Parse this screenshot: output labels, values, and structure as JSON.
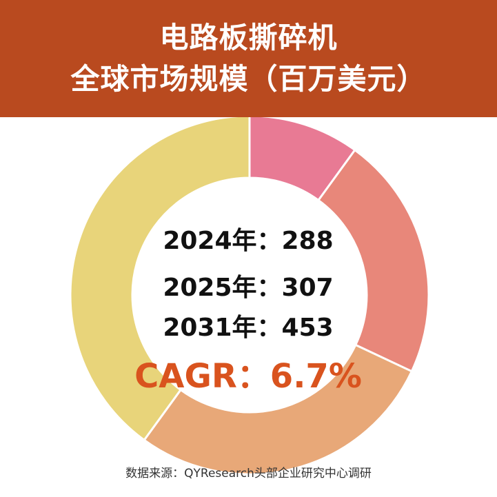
{
  "header": {
    "title_line1": "电路板撕碎机",
    "title_line2": "全球市场规模（百万美元）"
  },
  "center": {
    "line_2024": "2024年：288",
    "line_2025": "2025年：307",
    "line_2031": "2031年：453",
    "cagr": "CAGR：6.7%"
  },
  "source": "数据来源：QYResearch头部企业研究中心调研",
  "chart_data": {
    "type": "pie",
    "donut": true,
    "title": "电路板撕碎机 全球市场规模（百万美元）",
    "series": [
      {
        "value": 10,
        "color": "#e87a94"
      },
      {
        "value": 22,
        "color": "#e8877a"
      },
      {
        "value": 28,
        "color": "#e8a878"
      },
      {
        "value": 40,
        "color": "#e8d47a"
      }
    ],
    "annotations": {
      "2024": 288,
      "2025": 307,
      "2031": 453,
      "CAGR": "6.7%"
    }
  }
}
